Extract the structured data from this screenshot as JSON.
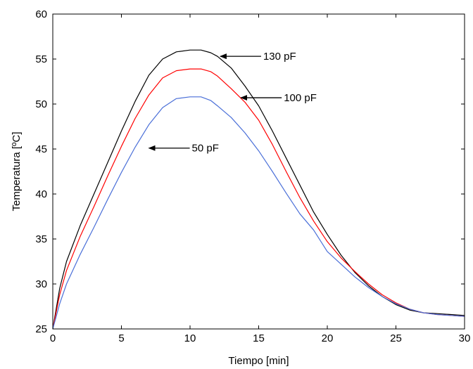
{
  "chart_data": {
    "type": "line",
    "xlabel": "Tiempo [min]",
    "ylabel": "Temperatura [ºC]",
    "xlim": [
      0,
      30
    ],
    "ylim": [
      25,
      60
    ],
    "x_ticks": [
      "0",
      "5",
      "10",
      "15",
      "20",
      "25",
      "30"
    ],
    "y_ticks": [
      "25",
      "30",
      "35",
      "40",
      "45",
      "50",
      "55",
      "60"
    ],
    "grid": false,
    "legend": "none",
    "series": [
      {
        "name": "130 pF",
        "color": "#000000",
        "x": [
          0,
          0.5,
          1,
          2,
          3,
          4,
          5,
          6,
          7,
          8,
          9,
          10,
          10.8,
          11.5,
          12,
          13,
          14,
          15,
          16,
          17,
          18,
          19,
          20,
          21,
          22,
          23,
          24,
          25,
          26,
          27,
          28,
          29,
          30
        ],
        "y": [
          25,
          29.5,
          32.5,
          36.5,
          40,
          43.5,
          47,
          50.3,
          53.2,
          55,
          55.8,
          56,
          56,
          55.7,
          55.3,
          54,
          52,
          49.8,
          47,
          44,
          41,
          38,
          35.5,
          33.2,
          31.3,
          29.8,
          28.6,
          27.7,
          27.1,
          26.8,
          26.7,
          26.6,
          26.5
        ]
      },
      {
        "name": "100 pF",
        "color": "#ff0000",
        "x": [
          0,
          0.5,
          1,
          2,
          3,
          4,
          5,
          6,
          7,
          8,
          9,
          10,
          10.8,
          11.5,
          12,
          13,
          14,
          15,
          16,
          17,
          18,
          19,
          20,
          21,
          22,
          23,
          24,
          25,
          26,
          27,
          28,
          29,
          30
        ],
        "y": [
          25,
          28.8,
          31.5,
          35.3,
          38.6,
          42,
          45.3,
          48.4,
          51,
          52.9,
          53.7,
          53.9,
          53.9,
          53.6,
          53.1,
          51.7,
          50.2,
          48.2,
          45.5,
          42.5,
          39.6,
          37,
          34.7,
          32.9,
          31.4,
          30,
          28.8,
          27.9,
          27.2,
          26.8,
          26.6,
          26.5,
          26.4
        ]
      },
      {
        "name": "50 pF",
        "color": "#4a6fd8",
        "x": [
          0,
          0.5,
          1,
          2,
          3,
          4,
          5,
          6,
          7,
          8,
          9,
          10,
          10.8,
          11.5,
          12,
          13,
          14,
          15,
          16,
          17,
          18,
          19,
          20,
          21,
          22,
          23,
          24,
          25,
          26,
          27,
          28,
          29,
          30
        ],
        "y": [
          25,
          27.8,
          30,
          33.3,
          36.3,
          39.4,
          42.4,
          45.2,
          47.7,
          49.6,
          50.6,
          50.8,
          50.8,
          50.4,
          49.8,
          48.5,
          46.8,
          44.8,
          42.5,
          40.1,
          37.8,
          36,
          33.6,
          32.2,
          30.8,
          29.6,
          28.6,
          27.8,
          27.2,
          26.8,
          26.6,
          26.5,
          26.4
        ]
      }
    ],
    "annotations": [
      {
        "text": "130 pF",
        "series": 0,
        "arrow_tip_x": 12.1,
        "arrow_tip_y": 55.3
      },
      {
        "text": "100 pF",
        "series": 1,
        "arrow_tip_x": 13.6,
        "arrow_tip_y": 50.7
      },
      {
        "text": "50 pF",
        "series": 2,
        "arrow_tip_x": 6.9,
        "arrow_tip_y": 45.1
      }
    ]
  }
}
